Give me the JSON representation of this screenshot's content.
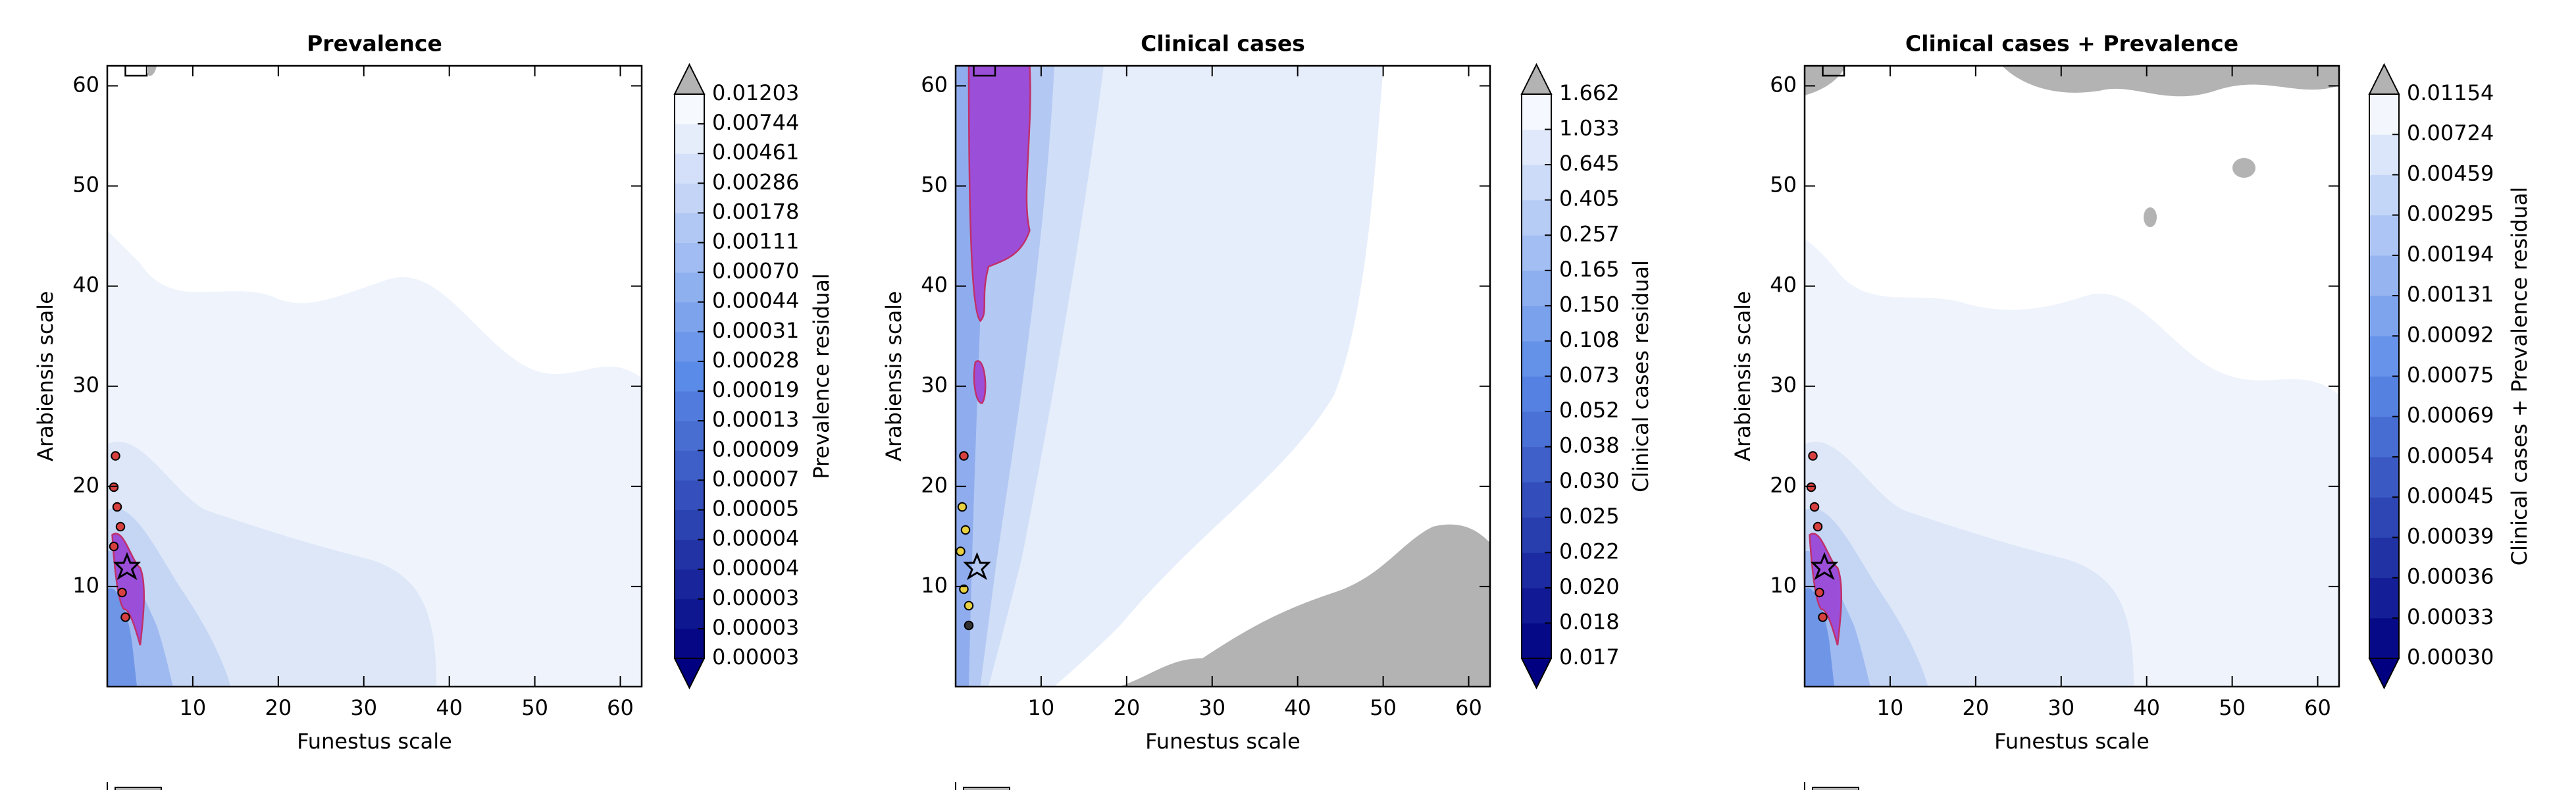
{
  "chart_data": [
    {
      "type": "contour",
      "title": "Prevalence",
      "xlabel": "Funestus scale",
      "ylabel": "Arabiensis scale",
      "xlim": [
        0,
        62.5
      ],
      "ylim": [
        0,
        62
      ],
      "xticks": [
        10,
        20,
        30,
        40,
        50,
        60
      ],
      "yticks": [
        10,
        20,
        30,
        40,
        50,
        60
      ],
      "colorbar": {
        "label": "Prevalence residual",
        "colors": [
          "#000080",
          "#5b8be8",
          "#ffffff"
        ],
        "over_color": "#b3b3b3",
        "levels": [
          3e-05,
          3e-05,
          3e-05,
          4e-05,
          4e-05,
          5e-05,
          7e-05,
          9e-05,
          0.00013,
          0.00019,
          0.00028,
          0.00031,
          0.00044,
          {
            "value": 0.0007,
            "label": "0.00070"
          },
          0.00111,
          0.00178,
          0.00286,
          0.00461,
          0.00744,
          0.01203
        ]
      }
    },
    {
      "type": "contour",
      "title": "Clinical cases",
      "xlabel": "Funestus scale",
      "ylabel": "Arabiensis scale",
      "xlim": [
        0,
        62.5
      ],
      "ylim": [
        0,
        62
      ],
      "xticks": [
        10,
        20,
        30,
        40,
        50,
        60
      ],
      "yticks": [
        10,
        20,
        30,
        40,
        50,
        60
      ],
      "colorbar": {
        "label": "Clinical cases residual",
        "colors": [
          "#000080",
          "#5b8be8",
          "#ffffff"
        ],
        "over_color": "#b3b3b3",
        "levels": [
          0.017,
          0.018,
          {
            "value": 0.02,
            "label": "0.020"
          },
          0.022,
          0.025,
          {
            "value": 0.03,
            "label": "0.030"
          },
          0.038,
          0.052,
          0.073,
          0.108,
          {
            "value": 0.15,
            "label": "0.150"
          },
          0.165,
          0.257,
          0.405,
          0.645,
          1.033,
          1.662
        ]
      }
    },
    {
      "type": "contour",
      "title": "Clinical cases + Prevalence",
      "xlabel": "Funestus scale",
      "ylabel": "Arabiensis scale",
      "xlim": [
        0,
        62.5
      ],
      "ylim": [
        0,
        62
      ],
      "xticks": [
        10,
        20,
        30,
        40,
        50,
        60
      ],
      "yticks": [
        10,
        20,
        30,
        40,
        50,
        60
      ],
      "colorbar": {
        "label": "Clinical cases + Prevalence residual",
        "colors": [
          "#000080",
          "#5b8be8",
          "#ffffff"
        ],
        "over_color": "#b3b3b3",
        "levels": [
          {
            "value": 0.0003,
            "label": "0.00030"
          },
          0.00033,
          0.00036,
          0.00039,
          0.00045,
          0.00054,
          0.00069,
          0.00075,
          0.00092,
          0.00131,
          0.00194,
          0.00295,
          0.00459,
          0.00724,
          0.01154
        ]
      }
    }
  ]
}
